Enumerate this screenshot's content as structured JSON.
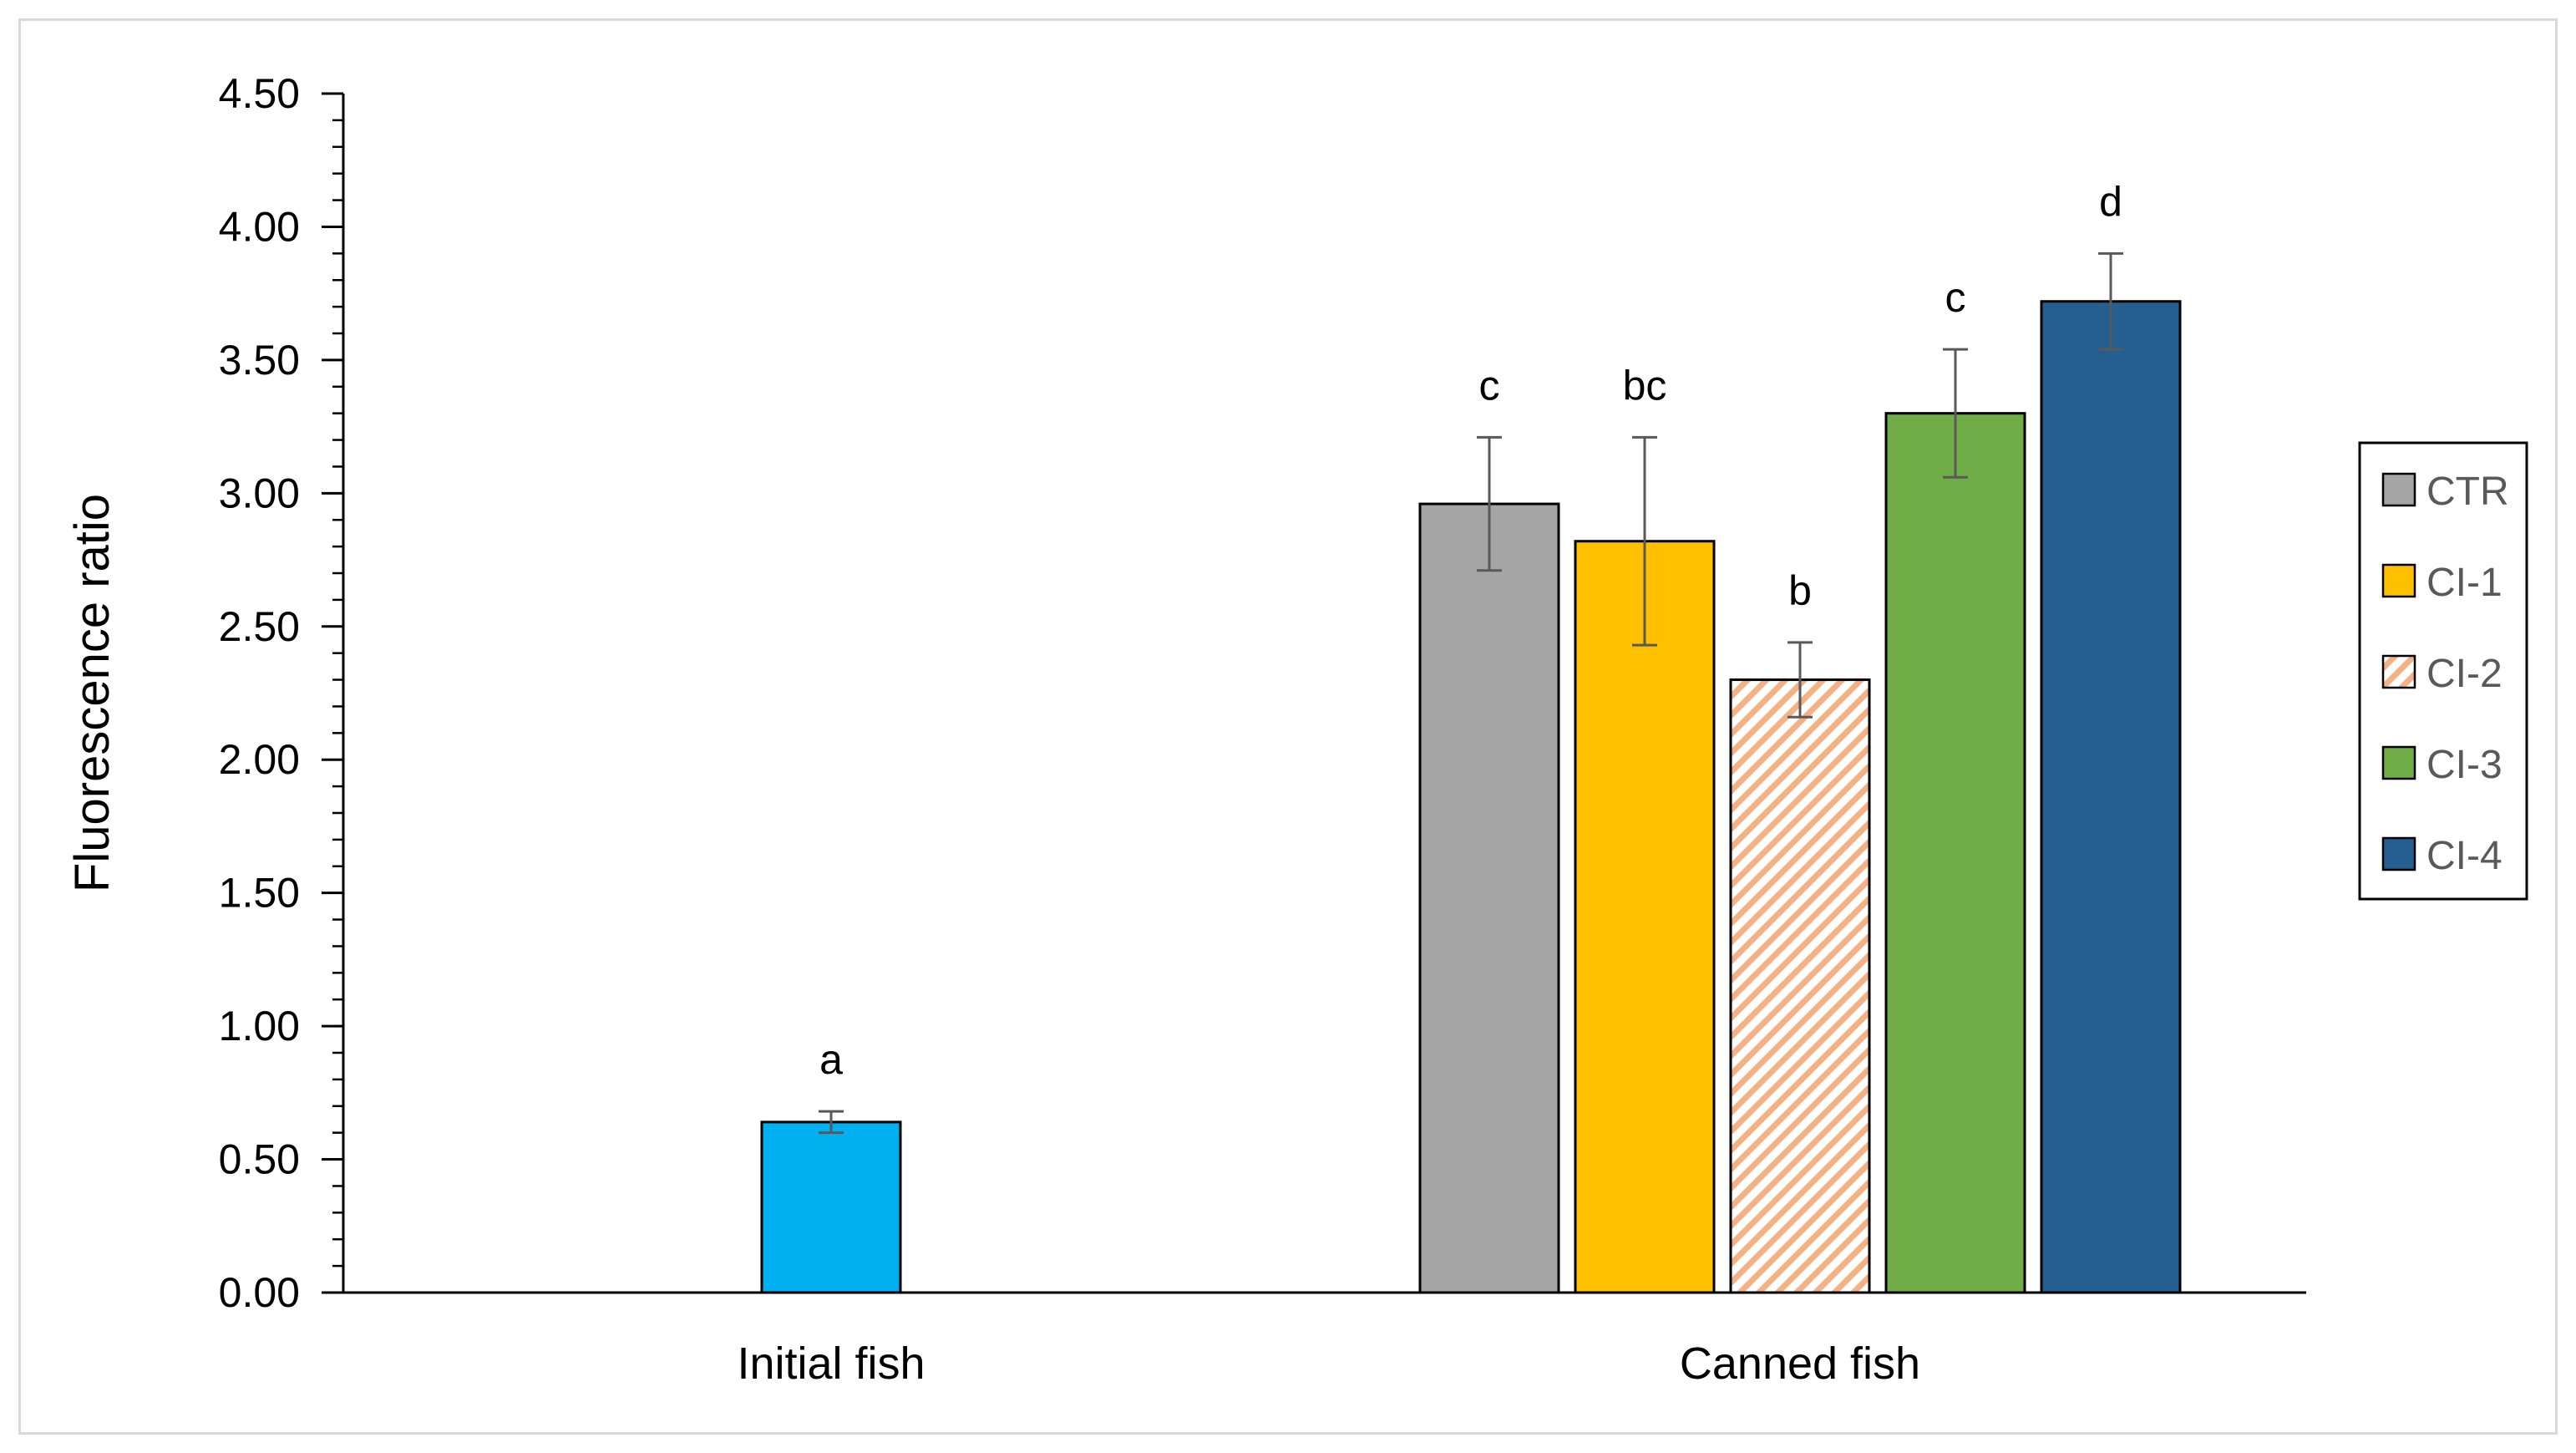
{
  "chart_data": {
    "type": "bar",
    "xlabel": "",
    "ylabel": "Fluorescence ratio",
    "ylim": [
      0,
      4.5
    ],
    "yticks": [
      "0.00",
      "0.50",
      "1.00",
      "1.50",
      "2.00",
      "2.50",
      "3.00",
      "3.50",
      "4.00",
      "4.50"
    ],
    "y_minor_step": 0.1,
    "grid": false,
    "legend_position": "right",
    "groups": [
      {
        "category": "Initial fish",
        "bars": [
          {
            "series": "",
            "value": 0.64,
            "error": 0.04,
            "label": "a",
            "color": "#00B0F0",
            "pattern": "solid"
          }
        ]
      },
      {
        "category": "Canned fish",
        "bars": [
          {
            "series": "CTR",
            "value": 2.96,
            "error": 0.25,
            "label": "c",
            "color": "#A5A5A5",
            "pattern": "solid"
          },
          {
            "series": "CI-1",
            "value": 2.82,
            "error": 0.39,
            "label": "bc",
            "color": "#FFC000",
            "pattern": "solid"
          },
          {
            "series": "CI-2",
            "value": 2.3,
            "error": 0.14,
            "label": "b",
            "color": "#F4B183",
            "pattern": "hatch"
          },
          {
            "series": "CI-3",
            "value": 3.3,
            "error": 0.24,
            "label": "c",
            "color": "#70AD47",
            "pattern": "solid"
          },
          {
            "series": "CI-4",
            "value": 3.72,
            "error": 0.18,
            "label": "d",
            "color": "#255E91",
            "pattern": "solid"
          }
        ]
      }
    ],
    "legend": [
      {
        "name": "CTR",
        "color": "#A5A5A5",
        "pattern": "solid"
      },
      {
        "name": "CI-1",
        "color": "#FFC000",
        "pattern": "solid"
      },
      {
        "name": "CI-2",
        "color": "#F4B183",
        "pattern": "hatch"
      },
      {
        "name": "CI-3",
        "color": "#70AD47",
        "pattern": "solid"
      },
      {
        "name": "CI-4",
        "color": "#255E91",
        "pattern": "solid"
      }
    ]
  }
}
